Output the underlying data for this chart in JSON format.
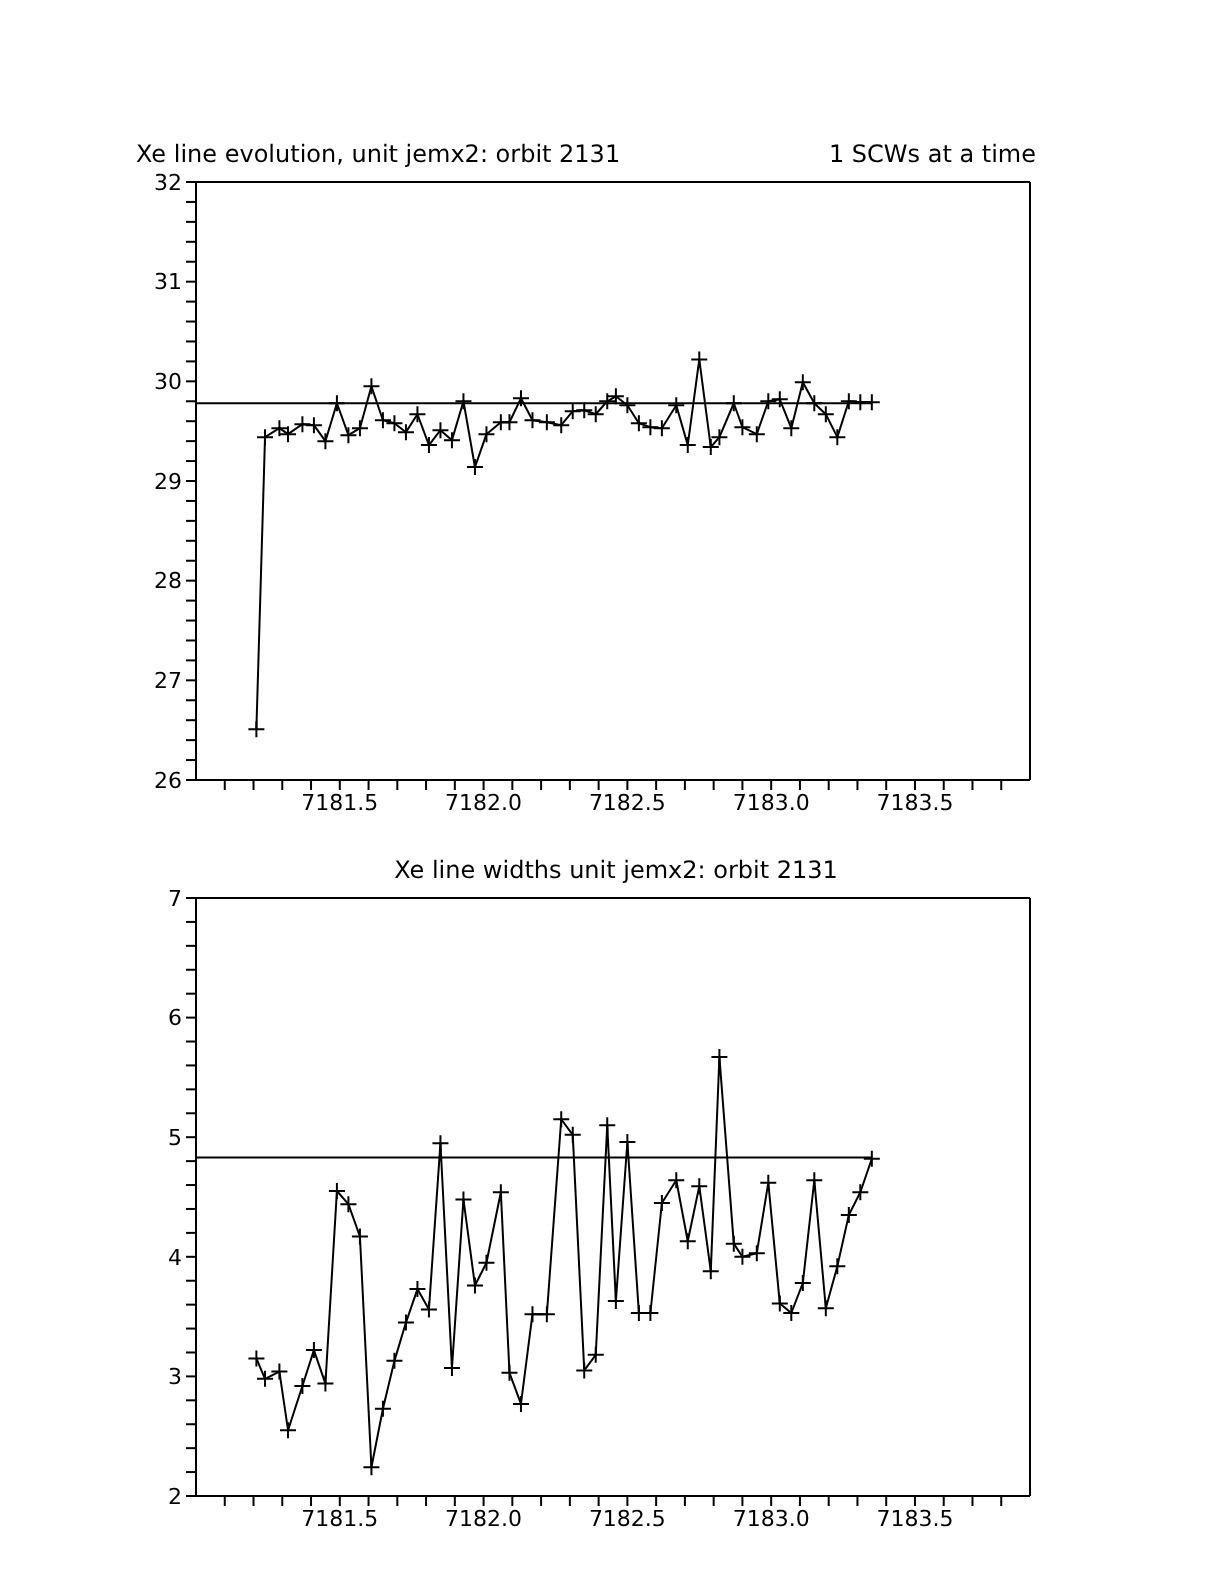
{
  "chart_data": [
    {
      "type": "line",
      "title": "Xe line evolution, unit jemx2: orbit 2131",
      "annotations": [
        "1 SCWs at a time"
      ],
      "x": [
        7181.21,
        7181.24,
        7181.29,
        7181.32,
        7181.37,
        7181.41,
        7181.45,
        7181.49,
        7181.53,
        7181.57,
        7181.61,
        7181.65,
        7181.69,
        7181.73,
        7181.77,
        7181.81,
        7181.85,
        7181.89,
        7181.93,
        7181.97,
        7182.01,
        7182.06,
        7182.09,
        7182.13,
        7182.17,
        7182.22,
        7182.27,
        7182.31,
        7182.35,
        7182.39,
        7182.43,
        7182.46,
        7182.5,
        7182.54,
        7182.58,
        7182.62,
        7182.67,
        7182.71,
        7182.75,
        7182.79,
        7182.82,
        7182.87,
        7182.9,
        7182.95,
        7182.99,
        7183.03,
        7183.07,
        7183.11,
        7183.15,
        7183.19,
        7183.23,
        7183.27,
        7183.31,
        7183.35
      ],
      "series": [
        {
          "color": "#000000",
          "values": [
            26.51,
            29.44,
            29.53,
            29.47,
            29.57,
            29.56,
            29.4,
            29.78,
            29.46,
            29.53,
            29.95,
            29.61,
            29.58,
            29.49,
            29.67,
            29.36,
            29.51,
            29.41,
            29.8,
            29.14,
            29.47,
            29.59,
            29.59,
            29.83,
            29.61,
            29.59,
            29.56,
            29.7,
            29.71,
            29.67,
            29.8,
            29.85,
            29.76,
            29.58,
            29.54,
            29.53,
            29.76,
            29.36,
            30.22,
            29.34,
            29.44,
            29.78,
            29.54,
            29.47,
            29.8,
            29.82,
            29.53,
            29.99,
            29.78,
            29.67,
            29.44,
            29.8,
            29.79,
            29.79
          ]
        }
      ],
      "xlim": [
        7181.0,
        7183.9
      ],
      "ylim": [
        26,
        32
      ],
      "xticks": [
        {
          "value": 7181.1,
          "label": null
        },
        {
          "value": 7181.2,
          "label": null
        },
        {
          "value": 7181.3,
          "label": null
        },
        {
          "value": 7181.4,
          "label": null
        },
        {
          "value": 7181.5,
          "label": "7181.5"
        },
        {
          "value": 7181.6,
          "label": null
        },
        {
          "value": 7181.7,
          "label": null
        },
        {
          "value": 7181.8,
          "label": null
        },
        {
          "value": 7181.9,
          "label": null
        },
        {
          "value": 7182.0,
          "label": "7182.0"
        },
        {
          "value": 7182.1,
          "label": null
        },
        {
          "value": 7182.2,
          "label": null
        },
        {
          "value": 7182.3,
          "label": null
        },
        {
          "value": 7182.4,
          "label": null
        },
        {
          "value": 7182.5,
          "label": "7182.5"
        },
        {
          "value": 7182.6,
          "label": null
        },
        {
          "value": 7182.7,
          "label": null
        },
        {
          "value": 7182.8,
          "label": null
        },
        {
          "value": 7182.9,
          "label": null
        },
        {
          "value": 7183.0,
          "label": "7183.0"
        },
        {
          "value": 7183.1,
          "label": null
        },
        {
          "value": 7183.2,
          "label": null
        },
        {
          "value": 7183.3,
          "label": null
        },
        {
          "value": 7183.4,
          "label": null
        },
        {
          "value": 7183.5,
          "label": "7183.5"
        },
        {
          "value": 7183.6,
          "label": null
        },
        {
          "value": 7183.7,
          "label": null
        },
        {
          "value": 7183.8,
          "label": null
        }
      ],
      "yticks": [
        26,
        {
          "value": 26.2,
          "label": null
        },
        {
          "value": 26.4,
          "label": null
        },
        {
          "value": 26.6,
          "label": null
        },
        {
          "value": 26.8,
          "label": null
        },
        27,
        {
          "value": 27.2,
          "label": null
        },
        {
          "value": 27.4,
          "label": null
        },
        {
          "value": 27.6,
          "label": null
        },
        {
          "value": 27.8,
          "label": null
        },
        28,
        {
          "value": 28.2,
          "label": null
        },
        {
          "value": 28.4,
          "label": null
        },
        {
          "value": 28.6,
          "label": null
        },
        {
          "value": 28.8,
          "label": null
        },
        29,
        {
          "value": 29.2,
          "label": null
        },
        {
          "value": 29.4,
          "label": null
        },
        {
          "value": 29.6,
          "label": null
        },
        {
          "value": 29.8,
          "label": null
        },
        30,
        {
          "value": 30.2,
          "label": null
        },
        {
          "value": 30.4,
          "label": null
        },
        {
          "value": 30.6,
          "label": null
        },
        {
          "value": 30.8,
          "label": null
        },
        31,
        {
          "value": 31.2,
          "label": null
        },
        {
          "value": 31.4,
          "label": null
        },
        {
          "value": 31.6,
          "label": null
        },
        {
          "value": 31.8,
          "label": null
        },
        32
      ],
      "ref_lines": [
        {
          "axis": "y",
          "value": 29.78,
          "color": "#000000"
        }
      ],
      "marker": "cross",
      "line_style": "solid"
    },
    {
      "type": "line",
      "title": "Xe line widths unit jemx2: orbit 2131",
      "x": [
        7181.21,
        7181.24,
        7181.29,
        7181.32,
        7181.37,
        7181.41,
        7181.45,
        7181.49,
        7181.53,
        7181.57,
        7181.61,
        7181.65,
        7181.69,
        7181.73,
        7181.77,
        7181.81,
        7181.85,
        7181.89,
        7181.93,
        7181.97,
        7182.01,
        7182.06,
        7182.09,
        7182.13,
        7182.17,
        7182.22,
        7182.27,
        7182.31,
        7182.35,
        7182.39,
        7182.43,
        7182.46,
        7182.5,
        7182.54,
        7182.58,
        7182.62,
        7182.67,
        7182.71,
        7182.75,
        7182.79,
        7182.82,
        7182.87,
        7182.9,
        7182.95,
        7182.99,
        7183.03,
        7183.07,
        7183.11,
        7183.15,
        7183.19,
        7183.23,
        7183.27,
        7183.31,
        7183.35
      ],
      "series": [
        {
          "color": "#000000",
          "values": [
            3.15,
            2.98,
            3.04,
            2.55,
            2.92,
            3.22,
            2.94,
            4.55,
            4.44,
            4.17,
            2.24,
            2.73,
            3.13,
            3.45,
            3.73,
            3.56,
            4.95,
            3.07,
            4.48,
            3.76,
            3.95,
            4.54,
            3.03,
            2.77,
            3.52,
            3.52,
            5.15,
            5.02,
            3.05,
            3.18,
            5.1,
            3.63,
            4.96,
            3.53,
            3.53,
            4.45,
            4.64,
            4.13,
            4.59,
            3.88,
            5.67,
            4.11,
            4.0,
            4.03,
            4.62,
            3.61,
            3.53,
            3.78,
            4.64,
            3.57,
            3.92,
            4.35,
            4.54,
            4.82
          ]
        }
      ],
      "xlim": [
        7181.0,
        7183.9
      ],
      "ylim": [
        2,
        7
      ],
      "xticks": [
        {
          "value": 7181.1,
          "label": null
        },
        {
          "value": 7181.2,
          "label": null
        },
        {
          "value": 7181.3,
          "label": null
        },
        {
          "value": 7181.4,
          "label": null
        },
        {
          "value": 7181.5,
          "label": "7181.5"
        },
        {
          "value": 7181.6,
          "label": null
        },
        {
          "value": 7181.7,
          "label": null
        },
        {
          "value": 7181.8,
          "label": null
        },
        {
          "value": 7181.9,
          "label": null
        },
        {
          "value": 7182.0,
          "label": "7182.0"
        },
        {
          "value": 7182.1,
          "label": null
        },
        {
          "value": 7182.2,
          "label": null
        },
        {
          "value": 7182.3,
          "label": null
        },
        {
          "value": 7182.4,
          "label": null
        },
        {
          "value": 7182.5,
          "label": "7182.5"
        },
        {
          "value": 7182.6,
          "label": null
        },
        {
          "value": 7182.7,
          "label": null
        },
        {
          "value": 7182.8,
          "label": null
        },
        {
          "value": 7182.9,
          "label": null
        },
        {
          "value": 7183.0,
          "label": "7183.0"
        },
        {
          "value": 7183.1,
          "label": null
        },
        {
          "value": 7183.2,
          "label": null
        },
        {
          "value": 7183.3,
          "label": null
        },
        {
          "value": 7183.4,
          "label": null
        },
        {
          "value": 7183.5,
          "label": "7183.5"
        },
        {
          "value": 7183.6,
          "label": null
        },
        {
          "value": 7183.7,
          "label": null
        },
        {
          "value": 7183.8,
          "label": null
        }
      ],
      "yticks": [
        2,
        {
          "value": 2.2,
          "label": null
        },
        {
          "value": 2.4,
          "label": null
        },
        {
          "value": 2.6,
          "label": null
        },
        {
          "value": 2.8,
          "label": null
        },
        3,
        {
          "value": 3.2,
          "label": null
        },
        {
          "value": 3.4,
          "label": null
        },
        {
          "value": 3.6,
          "label": null
        },
        {
          "value": 3.8,
          "label": null
        },
        4,
        {
          "value": 4.2,
          "label": null
        },
        {
          "value": 4.4,
          "label": null
        },
        {
          "value": 4.6,
          "label": null
        },
        {
          "value": 4.8,
          "label": null
        },
        5,
        {
          "value": 5.2,
          "label": null
        },
        {
          "value": 5.4,
          "label": null
        },
        {
          "value": 5.6,
          "label": null
        },
        {
          "value": 5.8,
          "label": null
        },
        6,
        {
          "value": 6.2,
          "label": null
        },
        {
          "value": 6.4,
          "label": null
        },
        {
          "value": 6.6,
          "label": null
        },
        {
          "value": 6.8,
          "label": null
        },
        7
      ],
      "ref_lines": [
        {
          "axis": "y",
          "value": 4.83,
          "color": "#000000"
        }
      ],
      "marker": "cross",
      "line_style": "solid"
    }
  ]
}
